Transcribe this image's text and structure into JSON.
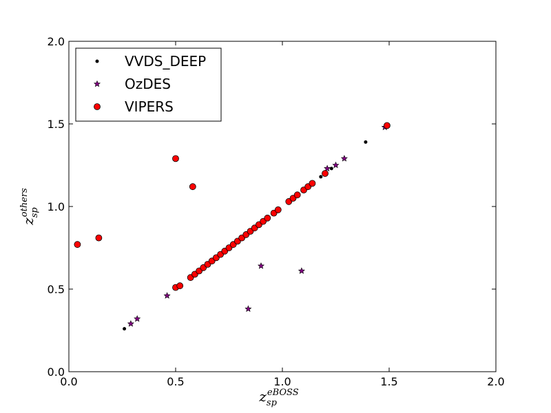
{
  "chart_data": {
    "type": "scatter",
    "title": "",
    "xlabel": {
      "base": "z",
      "sub": "sp",
      "sup": "eBOSS"
    },
    "ylabel": {
      "base": "z",
      "sub": "sp",
      "sup": "others"
    },
    "xlim": [
      0.0,
      2.0
    ],
    "ylim": [
      0.0,
      2.0
    ],
    "xticks": [
      "0.0",
      "0.5",
      "1.0",
      "1.5",
      "2.0"
    ],
    "yticks": [
      "0.0",
      "0.5",
      "1.0",
      "1.5",
      "2.0"
    ],
    "grid": false,
    "legend_position": "top-left",
    "series": [
      {
        "name": "VVDS_DEEP",
        "marker": "dot",
        "color": "#000000",
        "points": [
          [
            0.26,
            0.26
          ],
          [
            1.18,
            1.18
          ],
          [
            1.23,
            1.23
          ],
          [
            1.39,
            1.39
          ]
        ]
      },
      {
        "name": "OzDES",
        "marker": "star",
        "color": "#800080",
        "points": [
          [
            0.29,
            0.29
          ],
          [
            0.32,
            0.32
          ],
          [
            0.46,
            0.46
          ],
          [
            0.84,
            0.38
          ],
          [
            0.9,
            0.64
          ],
          [
            1.09,
            0.61
          ],
          [
            1.21,
            1.23
          ],
          [
            1.25,
            1.25
          ],
          [
            1.29,
            1.29
          ],
          [
            1.48,
            1.48
          ]
        ]
      },
      {
        "name": "VIPERS",
        "marker": "circle",
        "color": "#ff0000",
        "points": [
          [
            0.04,
            0.77
          ],
          [
            0.14,
            0.81
          ],
          [
            0.5,
            1.29
          ],
          [
            0.58,
            1.12
          ],
          [
            0.5,
            0.51
          ],
          [
            0.52,
            0.52
          ],
          [
            0.57,
            0.57
          ],
          [
            0.59,
            0.59
          ],
          [
            0.61,
            0.61
          ],
          [
            0.63,
            0.63
          ],
          [
            0.65,
            0.65
          ],
          [
            0.67,
            0.67
          ],
          [
            0.69,
            0.69
          ],
          [
            0.71,
            0.71
          ],
          [
            0.73,
            0.73
          ],
          [
            0.75,
            0.75
          ],
          [
            0.77,
            0.77
          ],
          [
            0.79,
            0.79
          ],
          [
            0.81,
            0.81
          ],
          [
            0.83,
            0.83
          ],
          [
            0.85,
            0.85
          ],
          [
            0.87,
            0.87
          ],
          [
            0.89,
            0.89
          ],
          [
            0.91,
            0.91
          ],
          [
            0.93,
            0.93
          ],
          [
            0.96,
            0.96
          ],
          [
            0.98,
            0.98
          ],
          [
            1.03,
            1.03
          ],
          [
            1.05,
            1.05
          ],
          [
            1.07,
            1.07
          ],
          [
            1.1,
            1.1
          ],
          [
            1.12,
            1.12
          ],
          [
            1.14,
            1.14
          ],
          [
            1.2,
            1.2
          ],
          [
            1.49,
            1.49
          ]
        ]
      }
    ]
  }
}
